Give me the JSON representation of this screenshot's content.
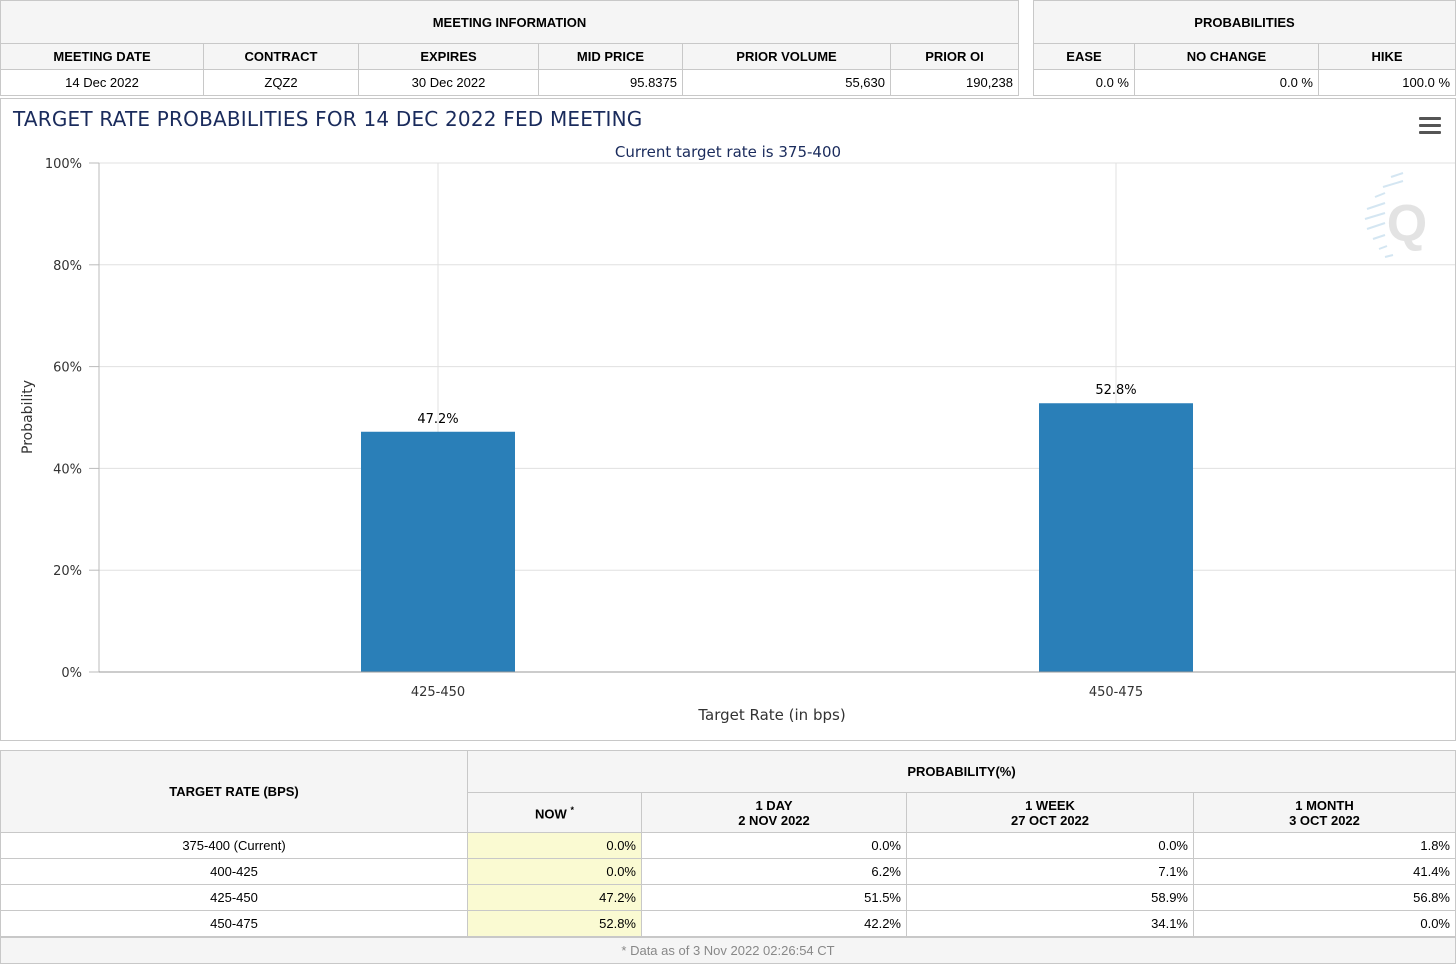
{
  "meeting_info": {
    "header": "MEETING INFORMATION",
    "columns": [
      "MEETING DATE",
      "CONTRACT",
      "EXPIRES",
      "MID PRICE",
      "PRIOR VOLUME",
      "PRIOR OI"
    ],
    "values": [
      "14 Dec 2022",
      "ZQZ2",
      "30 Dec 2022",
      "95.8375",
      "55,630",
      "190,238"
    ]
  },
  "probabilities": {
    "header": "PROBABILITIES",
    "columns": [
      "EASE",
      "NO CHANGE",
      "HIKE"
    ],
    "values": [
      "0.0 %",
      "0.0 %",
      "100.0 %"
    ]
  },
  "chart_data": {
    "type": "bar",
    "title": "TARGET RATE PROBABILITIES FOR 14 DEC 2022 FED MEETING",
    "subtitle": "Current target rate is 375-400",
    "categories": [
      "425-450",
      "450-475"
    ],
    "values": [
      47.2,
      52.8
    ],
    "data_labels": [
      "47.2%",
      "52.8%"
    ],
    "xlabel": "Target Rate (in bps)",
    "ylabel": "Probability",
    "ylim": [
      0,
      100
    ],
    "yticks": [
      "0%",
      "20%",
      "40%",
      "60%",
      "80%",
      "100%"
    ],
    "grid": true,
    "bar_color": "#2a7fb8"
  },
  "table": {
    "rate_header": "TARGET RATE (BPS)",
    "prob_header": "PROBABILITY(%)",
    "now_header": "NOW",
    "now_mark": "*",
    "periods": [
      {
        "label": "1 DAY",
        "date": "2 NOV 2022"
      },
      {
        "label": "1 WEEK",
        "date": "27 OCT 2022"
      },
      {
        "label": "1 MONTH",
        "date": "3 OCT 2022"
      }
    ],
    "rows": [
      {
        "rate": "375-400 (Current)",
        "now": "0.0%",
        "day": "0.0%",
        "week": "0.0%",
        "month": "1.8%"
      },
      {
        "rate": "400-425",
        "now": "0.0%",
        "day": "6.2%",
        "week": "7.1%",
        "month": "41.4%"
      },
      {
        "rate": "425-450",
        "now": "47.2%",
        "day": "51.5%",
        "week": "58.9%",
        "month": "56.8%"
      },
      {
        "rate": "450-475",
        "now": "52.8%",
        "day": "42.2%",
        "week": "34.1%",
        "month": "0.0%"
      }
    ],
    "footnote": "* Data as of 3 Nov 2022 02:26:54 CT"
  }
}
